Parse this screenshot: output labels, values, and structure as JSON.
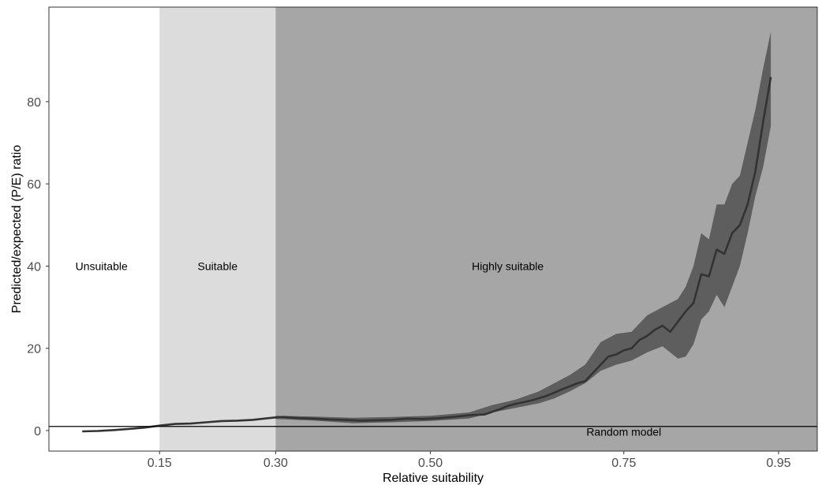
{
  "chart_data": {
    "type": "line",
    "xlabel": "Relative suitability",
    "ylabel": "Predicted/expected (P/E) ratio",
    "xlim": [
      0.007,
      1.0
    ],
    "ylim": [
      -5,
      103
    ],
    "x_ticks": [
      {
        "value": 0.15,
        "label": "0.15"
      },
      {
        "value": 0.3,
        "label": "0.30"
      },
      {
        "value": 0.5,
        "label": "0.50"
      },
      {
        "value": 0.75,
        "label": "0.75"
      },
      {
        "value": 0.95,
        "label": "0.95"
      }
    ],
    "y_ticks": [
      {
        "value": 0,
        "label": "0"
      },
      {
        "value": 20,
        "label": "20"
      },
      {
        "value": 40,
        "label": "40"
      },
      {
        "value": 60,
        "label": "60"
      },
      {
        "value": 80,
        "label": "80"
      }
    ],
    "zones": [
      {
        "label": "Unsuitable",
        "x_from": 0.007,
        "x_to": 0.15,
        "color": "#ffffff",
        "label_x": 0.075,
        "label_y": 40
      },
      {
        "label": "Suitable",
        "x_from": 0.15,
        "x_to": 0.3,
        "color": "#dcdcdc",
        "label_x": 0.225,
        "label_y": 40
      },
      {
        "label": "Highly suitable",
        "x_from": 0.3,
        "x_to": 1.0,
        "color": "#a6a6a6",
        "label_x": 0.6,
        "label_y": 40
      }
    ],
    "reference_line": {
      "label": "Random model",
      "y": 1,
      "label_x": 0.75,
      "label_y": -0.3
    },
    "series": [
      {
        "type": "line",
        "color": "#333333",
        "x": [
          0.05,
          0.07,
          0.09,
          0.11,
          0.13,
          0.15,
          0.17,
          0.19,
          0.21,
          0.23,
          0.25,
          0.27,
          0.29,
          0.3,
          0.31,
          0.33,
          0.35,
          0.37,
          0.39,
          0.41,
          0.43,
          0.45,
          0.47,
          0.49,
          0.51,
          0.53,
          0.55,
          0.57,
          0.59,
          0.6,
          0.61,
          0.63,
          0.65,
          0.67,
          0.69,
          0.7,
          0.71,
          0.72,
          0.73,
          0.74,
          0.75,
          0.76,
          0.77,
          0.78,
          0.79,
          0.8,
          0.81,
          0.82,
          0.83,
          0.84,
          0.85,
          0.86,
          0.87,
          0.88,
          0.89,
          0.9,
          0.91,
          0.92,
          0.93,
          0.94
        ],
        "y": [
          -0.2,
          -0.1,
          0.1,
          0.4,
          0.7,
          1.2,
          1.6,
          1.7,
          2.0,
          2.3,
          2.4,
          2.6,
          3.0,
          3.2,
          3.3,
          3.0,
          2.9,
          2.7,
          2.6,
          2.4,
          2.5,
          2.6,
          2.9,
          2.8,
          3.0,
          3.3,
          3.7,
          3.9,
          5.2,
          6.0,
          6.5,
          7.3,
          8.4,
          10.0,
          11.5,
          12.0,
          14.0,
          16.0,
          18.0,
          18.5,
          19.5,
          20.0,
          22.0,
          23.0,
          24.5,
          25.5,
          24.0,
          26.5,
          29.0,
          31.0,
          38.0,
          37.5,
          44.0,
          43.0,
          48.0,
          50.0,
          55.0,
          63.0,
          75.0,
          86.0
        ]
      }
    ],
    "band": {
      "color": "#5e5e5e",
      "x": [
        0.3,
        0.35,
        0.4,
        0.45,
        0.5,
        0.55,
        0.58,
        0.61,
        0.64,
        0.66,
        0.68,
        0.7,
        0.72,
        0.74,
        0.76,
        0.78,
        0.8,
        0.82,
        0.83,
        0.84,
        0.85,
        0.86,
        0.87,
        0.88,
        0.89,
        0.9,
        0.91,
        0.92,
        0.93,
        0.94
      ],
      "upper": [
        3.6,
        3.4,
        3.1,
        3.3,
        3.6,
        4.4,
        6.2,
        7.5,
        9.5,
        11.5,
        13.5,
        16.0,
        21.5,
        23.5,
        24.0,
        28.0,
        30.0,
        32.0,
        35.0,
        40.0,
        48.0,
        46.5,
        55.0,
        55.0,
        60.0,
        62.0,
        70.0,
        78.0,
        88.0,
        97.0
      ],
      "lower": [
        2.8,
        2.4,
        1.8,
        2.0,
        2.3,
        2.9,
        4.4,
        5.5,
        6.6,
        7.8,
        9.5,
        11.5,
        14.5,
        16.0,
        17.0,
        19.0,
        20.5,
        17.5,
        18.0,
        21.0,
        27.0,
        29.0,
        33.0,
        30.0,
        35.0,
        40.0,
        48.0,
        57.0,
        64.0,
        74.0
      ]
    }
  }
}
